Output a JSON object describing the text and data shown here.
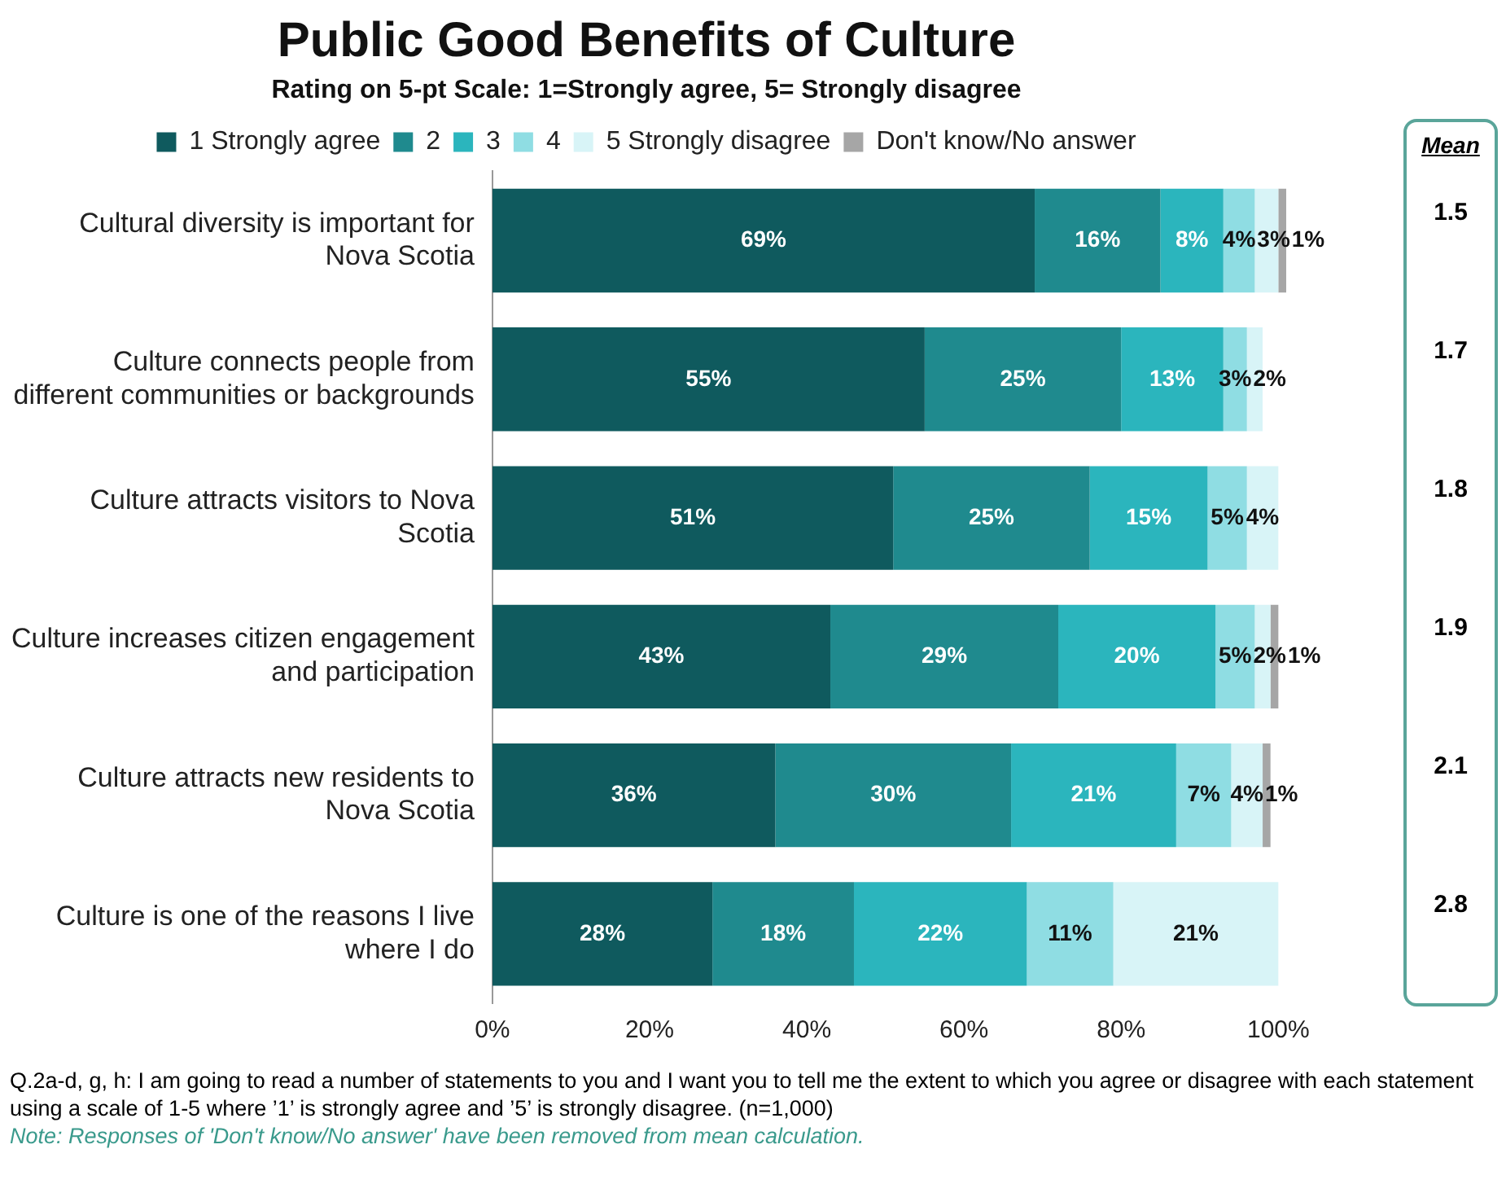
{
  "chart_data": [
    {
      "type": "bar",
      "orientation": "horizontal",
      "stacked": true,
      "title": "Public Good Benefits of Culture",
      "subtitle": "Rating on 5-pt Scale: 1=Strongly agree, 5= Strongly disagree",
      "categories": [
        "Cultural diversity is important for Nova Scotia",
        "Culture connects people from different communities or backgrounds",
        "Culture attracts visitors to Nova Scotia",
        "Culture increases citizen engagement and participation",
        "Culture attracts new residents to Nova Scotia",
        "Culture is one of the reasons I live where I do"
      ],
      "series": [
        {
          "name": "1 Strongly agree",
          "color": "#0f5a5e",
          "values": [
            69,
            55,
            51,
            43,
            36,
            28
          ],
          "value_labels": [
            "69%",
            "55%",
            "51%",
            "43%",
            "36%",
            "28%"
          ]
        },
        {
          "name": "2",
          "color": "#1f8a8e",
          "values": [
            16,
            25,
            25,
            29,
            30,
            18
          ],
          "value_labels": [
            "16%",
            "25%",
            "25%",
            "29%",
            "30%",
            "18%"
          ]
        },
        {
          "name": "3",
          "color": "#2bb5bd",
          "values": [
            8,
            13,
            15,
            20,
            21,
            22
          ],
          "value_labels": [
            "8%",
            "13%",
            "15%",
            "20%",
            "21%",
            "22%"
          ]
        },
        {
          "name": "4",
          "color": "#8fdde3",
          "values": [
            4,
            3,
            5,
            5,
            7,
            11
          ],
          "value_labels": [
            "4%",
            "3%",
            "5%",
            "5%",
            "7%",
            "11%"
          ]
        },
        {
          "name": "5 Strongly disagree",
          "color": "#d8f4f7",
          "values": [
            3,
            2,
            4,
            2,
            4,
            21
          ],
          "value_labels": [
            "3%",
            "2%",
            "4%",
            "2%",
            "4%",
            "21%"
          ]
        },
        {
          "name": "Don't know/No answer",
          "color": "#a6a6a6",
          "values": [
            1,
            null,
            null,
            1,
            1,
            null
          ],
          "value_labels": [
            "1%",
            null,
            null,
            "1%",
            "1%",
            null
          ]
        }
      ],
      "xlim": [
        0,
        101
      ],
      "xticks": [
        {
          "value": 0,
          "label": "0%"
        },
        {
          "value": 20,
          "label": "20%"
        },
        {
          "value": 40,
          "label": "40%"
        },
        {
          "value": 60,
          "label": "60%"
        },
        {
          "value": 80,
          "label": "80%"
        },
        {
          "value": 100,
          "label": "100%"
        }
      ],
      "grid": false,
      "legend": "top",
      "annotations": [
        "Q.2a-d, g, h: I am going to read a number of statements to you and I want you to tell me the extent to which you agree or disagree with each statement using a scale of 1-5 where ’1’ is strongly agree and ’5’ is strongly disagree. (n=1,000)",
        "Note: Responses of 'Don't know/No answer' have been removed from mean calculation."
      ]
    },
    {
      "type": "other",
      "title": "Mean",
      "values": [
        1.5,
        1.7,
        1.8,
        1.9,
        2.1,
        2.8
      ],
      "data_labels": true
    }
  ]
}
